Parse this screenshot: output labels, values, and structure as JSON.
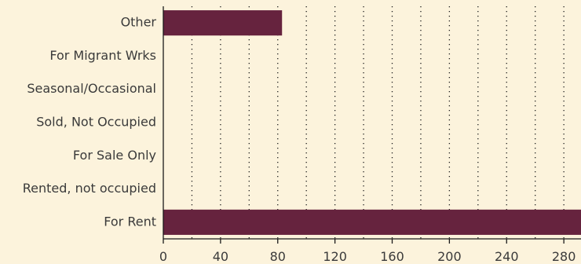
{
  "chart_data": {
    "type": "bar",
    "orientation": "horizontal",
    "categories": [
      "Other",
      "For Migrant Wrks",
      "Seasonal/Occasional",
      "Sold, Not Occupied",
      "For Sale Only",
      "Rented, not occupied",
      "For Rent"
    ],
    "values": [
      83,
      0,
      0,
      0,
      0,
      0,
      292
    ],
    "xlim": [
      0,
      292
    ],
    "xticks": [
      0,
      40,
      80,
      120,
      160,
      200,
      240,
      280
    ],
    "xgrid_step": 20,
    "grid": true,
    "bar_color": "#66233e",
    "background_color": "#fcf3dc"
  }
}
